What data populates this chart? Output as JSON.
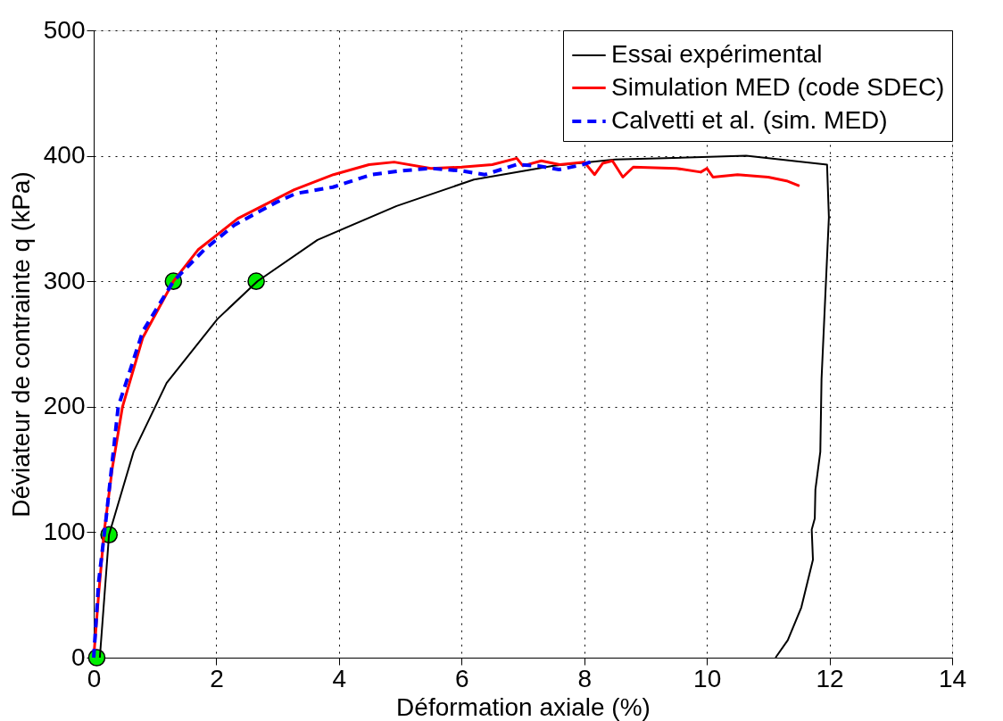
{
  "chart_data": {
    "type": "line",
    "xlabel": "Déformation axiale (%)",
    "ylabel": "Déviateur de contrainte q (kPa)",
    "xlim": [
      0,
      14
    ],
    "xticks": [
      0,
      2,
      4,
      6,
      8,
      10,
      12,
      14
    ],
    "ylim": [
      0,
      500
    ],
    "yticks": [
      0,
      100,
      200,
      300,
      400,
      500
    ],
    "grid": true,
    "legend": "top right",
    "series": [
      {
        "name": "Essai expérimental",
        "color": "#000000",
        "line_style": "solid",
        "x": [
          0.1,
          0.25,
          0.65,
          1.19,
          2.02,
          2.67,
          3.65,
          4.94,
          6.2,
          7.5,
          8.5,
          10.64,
          11.96,
          11.99,
          11.87,
          11.85,
          11.77,
          11.76,
          11.71,
          11.73,
          11.54,
          11.32,
          11.12
        ],
        "values": [
          0,
          98,
          164,
          219,
          270,
          300,
          333,
          360,
          381,
          392,
          397,
          400,
          393,
          351,
          222,
          164,
          134,
          111,
          102,
          78,
          40,
          14,
          0
        ]
      },
      {
        "name": "Simulation MED (code SDEC)",
        "color": "#ff0000",
        "line_style": "solid",
        "x": [
          0,
          0.08,
          0.17,
          0.3,
          0.47,
          0.8,
          1.3,
          1.7,
          2.35,
          3.27,
          3.91,
          4.49,
          4.9,
          5.5,
          6.0,
          6.5,
          6.9,
          7.0,
          7.3,
          7.6,
          8.0,
          8.17,
          8.3,
          8.46,
          8.63,
          8.8,
          9.5,
          9.9,
          10.0,
          10.1,
          10.5,
          11.0,
          11.3,
          11.51
        ],
        "values": [
          0,
          50,
          100,
          150,
          200,
          255,
          300,
          325,
          350,
          373,
          385,
          393,
          395,
          390,
          391,
          393,
          398,
          392,
          396,
          393,
          395,
          385,
          394,
          396,
          383,
          391,
          390,
          387,
          390,
          383,
          385,
          383,
          380,
          376
        ]
      },
      {
        "name": "Calvetti et al. (sim. MED)",
        "color": "#0000ff",
        "line_style": "dashed",
        "x": [
          0,
          0.08,
          0.2,
          0.4,
          0.8,
          1.3,
          1.8,
          2.3,
          2.98,
          3.3,
          3.9,
          4.53,
          5.0,
          5.5,
          6.0,
          6.38,
          6.9,
          7.25,
          7.59,
          7.98,
          8.1
        ],
        "values": [
          0,
          60,
          110,
          200,
          260,
          300,
          325,
          345,
          363,
          370,
          375,
          385,
          388,
          390,
          388,
          385,
          393,
          392,
          389,
          393,
          395
        ]
      },
      {
        "type": "scatter",
        "color": "#00ee00",
        "marker": "circle",
        "x": [
          0.05,
          0.25,
          1.3,
          2.65
        ],
        "values": [
          0,
          98,
          300,
          300
        ]
      }
    ]
  }
}
